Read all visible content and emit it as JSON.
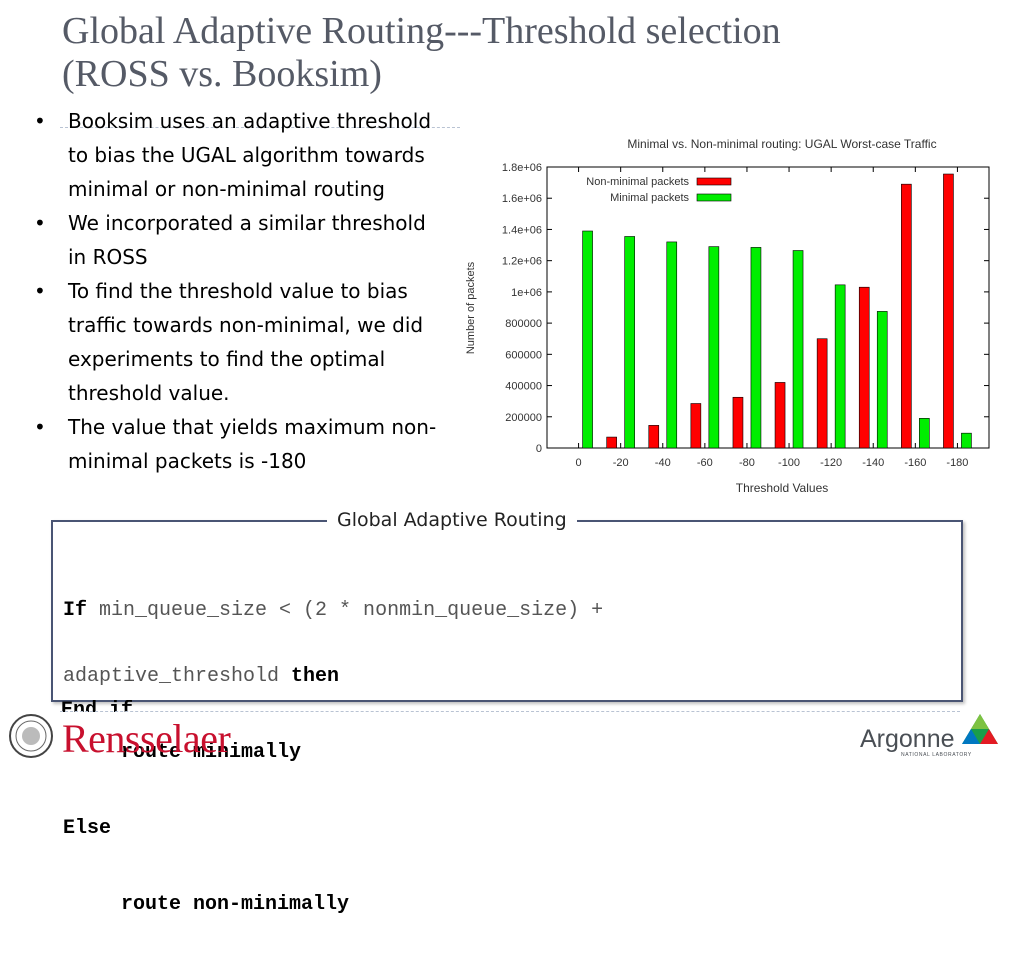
{
  "slide": {
    "title_line1": "Global Adaptive Routing---Threshold selection",
    "title_line2": "(ROSS vs. Booksim)"
  },
  "bullets": [
    "Booksim uses an adaptive threshold to bias the UGAL algorithm towards minimal or non-minimal routing",
    "We incorporated a similar threshold in ROSS",
    "To find the threshold value to bias traffic towards non-minimal, we did experiments to find the optimal threshold value.",
    "The value that yields maximum non-minimal packets is -180"
  ],
  "chart_data": {
    "type": "bar",
    "title": "Minimal vs. Non-minimal routing: UGAL Worst-case Traffic",
    "xlabel": "Threshold Values",
    "ylabel": "Number of packets",
    "ylim": [
      0,
      1800000
    ],
    "yticks": [
      0,
      200000,
      400000,
      600000,
      800000,
      1000000,
      1200000,
      1400000,
      1600000,
      1800000
    ],
    "ytick_labels": [
      "0",
      "200000",
      "400000",
      "600000",
      "800000",
      "1e+06",
      "1.2e+06",
      "1.4e+06",
      "1.6e+06",
      "1.8e+06"
    ],
    "categories": [
      "0",
      "-20",
      "-40",
      "-60",
      "-80",
      "-100",
      "-120",
      "-140",
      "-160",
      "-180"
    ],
    "legend_position": "top-left",
    "series": [
      {
        "name": "Non-minimal packets",
        "color": "#ff0000",
        "values": [
          0,
          70000,
          145000,
          285000,
          325000,
          420000,
          700000,
          1030000,
          1690000,
          1755000
        ]
      },
      {
        "name": "Minimal packets",
        "color": "#00ee00",
        "values": [
          1390000,
          1355000,
          1320000,
          1290000,
          1285000,
          1265000,
          1045000,
          875000,
          190000,
          95000
        ]
      }
    ]
  },
  "code_panel": {
    "label": "Global Adaptive Routing",
    "line1_kw": "If",
    "line1_text": " min_queue_size < (2 * nonmin_queue_size) +",
    "line2_text": "adaptive_threshold ",
    "line2_kw": "then",
    "line3": "route minimally",
    "line4": "Else",
    "line5": "route non-minimally",
    "line6": "End if"
  },
  "footer": {
    "left_logo_text": "Rensselaer",
    "right_logo_text": "Argonne",
    "right_logo_subtext": "NATIONAL LABORATORY"
  }
}
